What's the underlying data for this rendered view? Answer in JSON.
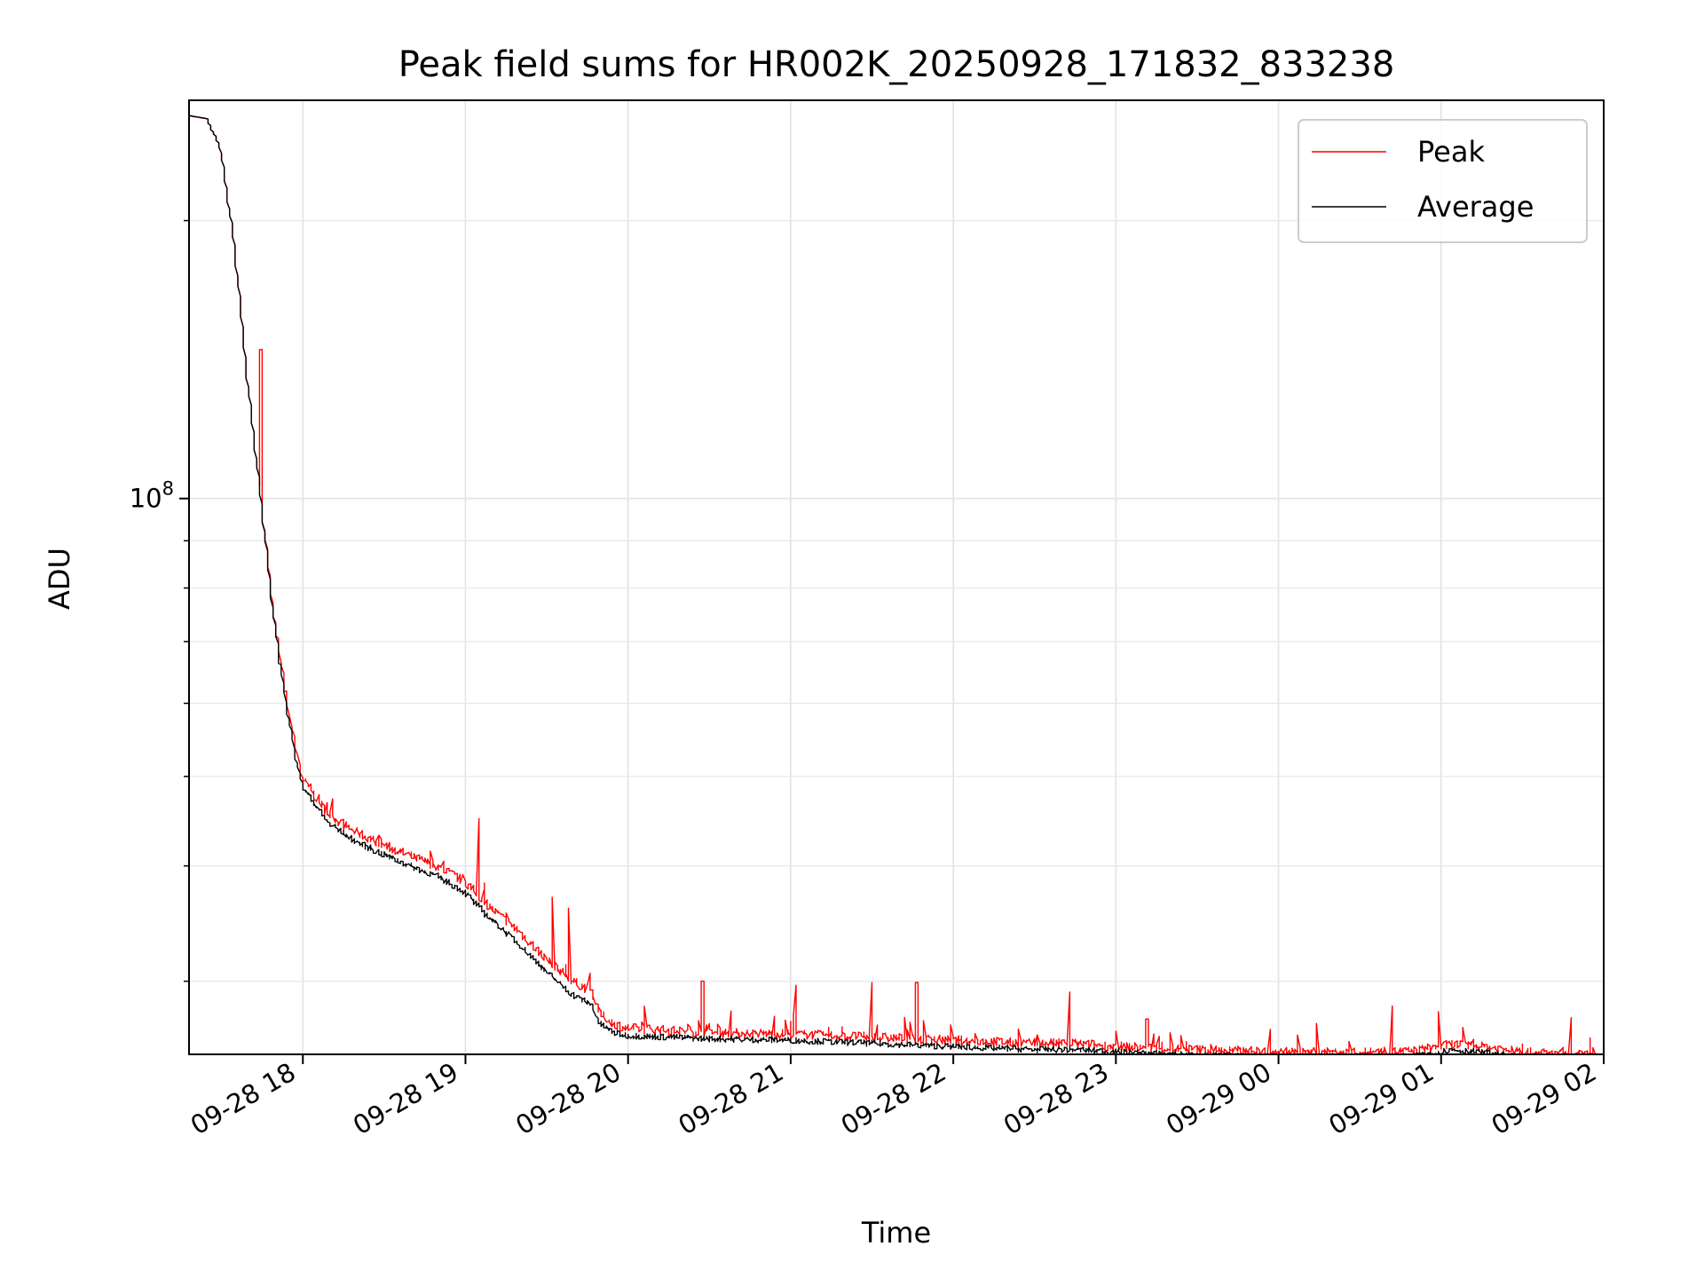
{
  "chart_data": {
    "type": "line",
    "title": "Peak field sums for HR002K_20250928_171832_833238",
    "xlabel": "Time",
    "ylabel": "ADU",
    "yscale": "log",
    "xlim": [
      "2025-09-28 17:18",
      "2025-09-29 02:00"
    ],
    "ylim": [
      25000000,
      270000000
    ],
    "x_ticks": [
      "09-28 18",
      "09-28 19",
      "09-28 20",
      "09-28 21",
      "09-28 22",
      "09-28 23",
      "09-29 00",
      "09-29 01",
      "09-29 02"
    ],
    "y_major_ticks": [
      {
        "value": 100000000,
        "base": "10",
        "exponent": "8"
      }
    ],
    "y_minor_ticks": [
      30000000,
      40000000,
      50000000,
      60000000,
      70000000,
      80000000,
      90000000,
      200000000
    ],
    "grid": true,
    "legend": "top-right",
    "series": [
      {
        "name": "Peak",
        "color": "#ff0000",
        "x": [
          "2025-09-28 17:18",
          "2025-09-28 17:25",
          "2025-09-28 17:30",
          "2025-09-28 17:35",
          "2025-09-28 17:40",
          "2025-09-28 17:45",
          "2025-09-28 17:50",
          "2025-09-28 17:55",
          "2025-09-28 18:00",
          "2025-09-28 18:10",
          "2025-09-28 18:20",
          "2025-09-28 18:30",
          "2025-09-28 18:40",
          "2025-09-28 18:50",
          "2025-09-28 19:00",
          "2025-09-28 19:10",
          "2025-09-28 19:20",
          "2025-09-28 19:30",
          "2025-09-28 19:40",
          "2025-09-28 19:47",
          "2025-09-28 19:50",
          "2025-09-28 19:55",
          "2025-09-28 20:00",
          "2025-09-28 20:30",
          "2025-09-28 21:00",
          "2025-09-28 21:30",
          "2025-09-28 22:00",
          "2025-09-28 22:30",
          "2025-09-28 22:45",
          "2025-09-28 23:00",
          "2025-09-28 23:30",
          "2025-09-29 00:00",
          "2025-09-29 00:30",
          "2025-09-29 00:50",
          "2025-09-29 01:05",
          "2025-09-29 01:20",
          "2025-09-29 01:30",
          "2025-09-29 01:45",
          "2025-09-29 02:00"
        ],
        "values": [
          260000000,
          258000000,
          240000000,
          190000000,
          135000000,
          100000000,
          74000000,
          59000000,
          50000000,
          45500000,
          43500000,
          42200000,
          41000000,
          40000000,
          38500000,
          36000000,
          34000000,
          31800000,
          30000000,
          29300000,
          27700000,
          27000000,
          26700000,
          26400000,
          26300000,
          26100000,
          25900000,
          25700000,
          25700000,
          25500000,
          25300000,
          25150000,
          25100000,
          25200000,
          25650000,
          25400000,
          25150000,
          25000000,
          24950000
        ]
      },
      {
        "name": "Average",
        "color": "#000000",
        "x": [
          "2025-09-28 17:18",
          "2025-09-28 17:25",
          "2025-09-28 17:30",
          "2025-09-28 17:35",
          "2025-09-28 17:40",
          "2025-09-28 17:45",
          "2025-09-28 17:50",
          "2025-09-28 17:55",
          "2025-09-28 18:00",
          "2025-09-28 18:10",
          "2025-09-28 18:20",
          "2025-09-28 18:30",
          "2025-09-28 18:40",
          "2025-09-28 18:50",
          "2025-09-28 19:00",
          "2025-09-28 19:10",
          "2025-09-28 19:20",
          "2025-09-28 19:30",
          "2025-09-28 19:40",
          "2025-09-28 19:47",
          "2025-09-28 19:50",
          "2025-09-28 19:55",
          "2025-09-28 20:00",
          "2025-09-28 20:30",
          "2025-09-28 21:00",
          "2025-09-28 21:30",
          "2025-09-28 22:00",
          "2025-09-28 22:30",
          "2025-09-28 22:45",
          "2025-09-28 23:00",
          "2025-09-28 23:30",
          "2025-09-29 00:00",
          "2025-09-29 00:30",
          "2025-09-29 00:50",
          "2025-09-29 01:05",
          "2025-09-29 01:20",
          "2025-09-29 01:30",
          "2025-09-29 01:45",
          "2025-09-29 02:00"
        ],
        "values": [
          260000000,
          258000000,
          240000000,
          190000000,
          135000000,
          100000000,
          73000000,
          58000000,
          49000000,
          44500000,
          42500000,
          41200000,
          40000000,
          39000000,
          37500000,
          35000000,
          33000000,
          30800000,
          29000000,
          28300000,
          27000000,
          26400000,
          26200000,
          26000000,
          25900000,
          25700000,
          25500000,
          25300000,
          25300000,
          25150000,
          24950000,
          24800000,
          24750000,
          24850000,
          25300000,
          25050000,
          24800000,
          24650000,
          24600000
        ]
      }
    ],
    "spikes": {
      "series": "Peak",
      "x": [
        "2025-09-28 17:45",
        "2025-09-28 19:05",
        "2025-09-28 19:33",
        "2025-09-28 19:39",
        "2025-09-28 20:28",
        "2025-09-28 21:02",
        "2025-09-28 21:30",
        "2025-09-28 21:47",
        "2025-09-28 22:43",
        "2025-09-28 23:12",
        "2025-09-29 00:15",
        "2025-09-29 00:42",
        "2025-09-29 01:00",
        "2025-09-29 01:48"
      ],
      "values": [
        145000000,
        45000000,
        37000000,
        36000000,
        30000000,
        29700000,
        29900000,
        29900000,
        29200000,
        27300000,
        27000000,
        28200000,
        27800000,
        27400000
      ]
    }
  }
}
